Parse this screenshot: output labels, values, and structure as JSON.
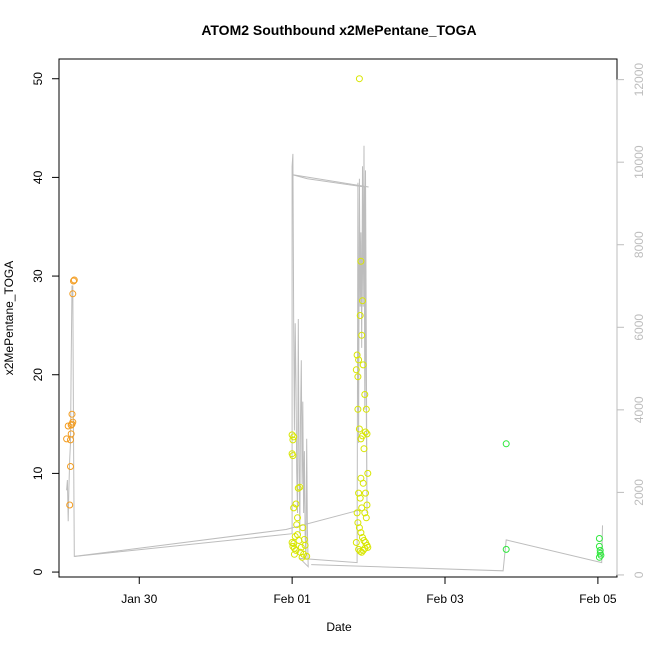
{
  "chart_data": {
    "type": "scatter",
    "title": "ATOM2 Southbound x2MePentane_TOGA",
    "xlabel": "Date",
    "ylabel": "x2MePentane_TOGA",
    "x_ticks": [
      {
        "label": "Jan 30",
        "day": 30
      },
      {
        "label": "Feb 01",
        "day": 32
      },
      {
        "label": "Feb 03",
        "day": 34
      },
      {
        "label": "Feb 05",
        "day": 36
      }
    ],
    "xlim_day": [
      28.95,
      36.25
    ],
    "ylim": [
      -0.5,
      52
    ],
    "y_ticks": [
      0,
      10,
      20,
      30,
      40,
      50
    ],
    "y2lim": [
      -50,
      12500
    ],
    "y2_ticks": [
      0,
      2000,
      4000,
      6000,
      8000,
      10000,
      12000
    ],
    "grid": false,
    "legend": "none",
    "colors": {
      "orange": "#f39c1f",
      "yellow": "#d8e600",
      "green": "#2ee83c",
      "altitude_line": "#bdbdbd",
      "axis": "#000000",
      "axis_right": "#bdbdbd"
    },
    "series": [
      {
        "color_key": "orange",
        "points": [
          [
            29.05,
            13.5
          ],
          [
            29.07,
            14.8
          ],
          [
            29.09,
            6.8
          ],
          [
            29.1,
            10.7
          ],
          [
            29.1,
            13.4
          ],
          [
            29.11,
            14.0
          ],
          [
            29.11,
            14.9
          ],
          [
            29.12,
            15.0
          ],
          [
            29.12,
            16.0
          ],
          [
            29.13,
            15.2
          ],
          [
            29.13,
            28.2
          ],
          [
            29.14,
            29.5
          ],
          [
            29.15,
            29.6
          ]
        ]
      },
      {
        "color_key": "yellow",
        "points": [
          [
            32.0,
            13.9
          ],
          [
            32.01,
            13.4
          ],
          [
            32.02,
            13.7
          ],
          [
            32.0,
            12.0
          ],
          [
            32.01,
            11.8
          ],
          [
            32.02,
            6.5
          ],
          [
            32.0,
            3.0
          ],
          [
            32.01,
            2.6
          ],
          [
            32.02,
            2.9
          ],
          [
            32.03,
            2.4
          ],
          [
            32.04,
            3.6
          ],
          [
            32.05,
            2.2
          ],
          [
            32.06,
            4.8
          ],
          [
            32.07,
            5.5
          ],
          [
            32.08,
            8.5
          ],
          [
            32.1,
            8.6
          ],
          [
            32.09,
            3.2
          ],
          [
            32.11,
            2.0
          ],
          [
            32.13,
            1.5
          ],
          [
            32.15,
            1.8
          ],
          [
            32.17,
            2.7
          ],
          [
            32.19,
            1.6
          ],
          [
            32.03,
            1.8
          ],
          [
            32.05,
            6.9
          ],
          [
            32.07,
            3.8
          ],
          [
            32.14,
            4.5
          ],
          [
            32.12,
            2.5
          ],
          [
            32.16,
            3.3
          ],
          [
            32.88,
            50.0
          ],
          [
            32.9,
            31.5
          ],
          [
            32.92,
            27.5
          ],
          [
            32.89,
            26.0
          ],
          [
            32.91,
            24.0
          ],
          [
            32.85,
            22.0
          ],
          [
            32.87,
            21.5
          ],
          [
            32.93,
            21.0
          ],
          [
            32.84,
            20.5
          ],
          [
            32.86,
            19.8
          ],
          [
            32.95,
            18.0
          ],
          [
            32.97,
            16.5
          ],
          [
            32.86,
            16.5
          ],
          [
            32.88,
            14.5
          ],
          [
            32.9,
            13.5
          ],
          [
            32.92,
            13.8
          ],
          [
            32.96,
            14.2
          ],
          [
            32.98,
            14.0
          ],
          [
            32.94,
            12.5
          ],
          [
            32.99,
            10.0
          ],
          [
            32.93,
            9.0
          ],
          [
            32.87,
            8.0
          ],
          [
            32.89,
            7.5
          ],
          [
            32.91,
            6.5
          ],
          [
            32.95,
            6.0
          ],
          [
            32.97,
            5.5
          ],
          [
            32.85,
            6.0
          ],
          [
            32.86,
            5.0
          ],
          [
            32.88,
            4.5
          ],
          [
            32.9,
            4.0
          ],
          [
            32.92,
            3.5
          ],
          [
            32.94,
            3.2
          ],
          [
            32.96,
            3.0
          ],
          [
            32.98,
            2.7
          ],
          [
            32.99,
            2.5
          ],
          [
            32.87,
            2.3
          ],
          [
            32.89,
            2.1
          ],
          [
            32.91,
            2.0
          ],
          [
            32.93,
            2.2
          ],
          [
            32.95,
            2.4
          ],
          [
            32.84,
            3.0
          ],
          [
            32.9,
            9.5
          ],
          [
            32.96,
            8.0
          ],
          [
            32.98,
            6.8
          ]
        ]
      },
      {
        "color_key": "green",
        "points": [
          [
            34.8,
            13.0
          ],
          [
            34.8,
            2.3
          ],
          [
            36.02,
            3.4
          ],
          [
            36.02,
            2.6
          ],
          [
            36.03,
            2.2
          ],
          [
            36.03,
            1.9
          ],
          [
            36.04,
            1.7
          ],
          [
            36.02,
            1.5
          ]
        ]
      }
    ],
    "altitude_series": [
      [
        29.05,
        2050
      ],
      [
        29.06,
        2300
      ],
      [
        29.07,
        1300
      ],
      [
        29.08,
        2100
      ],
      [
        29.09,
        2800
      ],
      [
        29.1,
        3200
      ],
      [
        29.11,
        5200
      ],
      [
        29.12,
        7000
      ],
      [
        29.13,
        7000
      ],
      [
        29.14,
        3500
      ],
      [
        29.15,
        450
      ],
      [
        29.16,
        450
      ],
      [
        32.0,
        1000
      ],
      [
        32.0,
        9900
      ],
      [
        32.01,
        10200
      ],
      [
        32.02,
        6000
      ],
      [
        32.03,
        3500
      ],
      [
        32.04,
        6100
      ],
      [
        32.05,
        4600
      ],
      [
        32.06,
        2500
      ],
      [
        32.07,
        1500
      ],
      [
        32.08,
        6200
      ],
      [
        32.09,
        3000
      ],
      [
        32.1,
        1000
      ],
      [
        32.11,
        3800
      ],
      [
        32.12,
        5200
      ],
      [
        32.13,
        2200
      ],
      [
        32.14,
        4200
      ],
      [
        32.15,
        1500
      ],
      [
        32.16,
        3000
      ],
      [
        32.17,
        1000
      ],
      [
        32.18,
        400
      ],
      [
        32.19,
        3300
      ],
      [
        32.2,
        1100
      ],
      [
        32.21,
        200
      ],
      [
        32.1,
        400
      ],
      [
        32.85,
        300
      ],
      [
        32.86,
        9500
      ],
      [
        32.87,
        3200
      ],
      [
        32.88,
        9600
      ],
      [
        32.89,
        6500
      ],
      [
        32.9,
        8300
      ],
      [
        32.91,
        5500
      ],
      [
        32.92,
        9900
      ],
      [
        32.93,
        6500
      ],
      [
        32.94,
        10400
      ],
      [
        32.95,
        4000
      ],
      [
        32.96,
        9800
      ],
      [
        32.97,
        5800
      ],
      [
        32.98,
        1500
      ],
      [
        32.95,
        9400
      ],
      [
        32.2,
        9600
      ],
      [
        32.0,
        9700
      ]
    ],
    "altitude_long_lines": [
      [
        [
          29.15,
          450
        ],
        [
          31.92,
          1100
        ],
        [
          32.9,
          1580
        ]
      ],
      [
        [
          32.25,
          250
        ],
        [
          34.76,
          100
        ],
        [
          34.8,
          850
        ],
        [
          36.05,
          300
        ],
        [
          36.06,
          1200
        ]
      ],
      [
        [
          32.0,
          9700
        ],
        [
          33.0,
          9400
        ]
      ]
    ]
  }
}
